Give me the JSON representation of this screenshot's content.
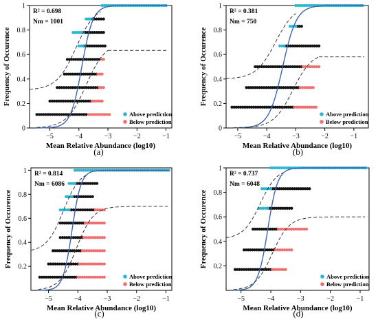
{
  "colors": {
    "above": "#2ab5d3",
    "below": "#ee6e6e",
    "neutral": "#111111",
    "model_line": "#3a64ae",
    "ci_line": "#333333"
  },
  "chart_data": [
    {
      "type": "scatter",
      "panel_label": "(a)",
      "stats": [
        "R² = 0.698",
        "Nm = 1001"
      ],
      "xlabel": "Mean Relative Abundance (log10)",
      "ylabel": "Frequency of Occurence",
      "xlim": [
        -5.7,
        -0.8
      ],
      "ylim": [
        0,
        1
      ],
      "x_ticks": [
        -5,
        -4,
        -3,
        -2,
        -1
      ],
      "y_ticks": [
        0,
        0.2,
        0.4,
        0.6,
        0.8,
        1
      ],
      "grid": false,
      "legend_position": "bottom-right",
      "series": [
        {
          "name": "Above prediction",
          "color_key": "above"
        },
        {
          "name": "Below prediction",
          "color_key": "below"
        }
      ],
      "model": {
        "midpoint": -3.9,
        "slope": 5.2
      },
      "lower_ci": {
        "plateau": 0.7,
        "midpoint": -3.75,
        "slope": 3.0,
        "end_x": -3.0
      },
      "upper_ci": {
        "base": 0.31,
        "midpoint": -4.1,
        "slope": 3.0,
        "end_x": -3.25
      },
      "levels": [
        {
          "y": 0.11,
          "black": [
            -5.45,
            -3.75
          ],
          "red": [
            -3.65,
            -2.95
          ]
        },
        {
          "y": 0.22,
          "black": [
            -5.0,
            -3.6
          ],
          "red": [
            -3.55,
            -3.2
          ]
        },
        {
          "y": 0.33,
          "black": [
            -4.75,
            -3.35
          ],
          "red": [
            -3.3,
            -3.15
          ]
        },
        {
          "y": 0.44,
          "black": [
            -4.5,
            -3.4
          ],
          "red": [
            -3.35,
            -3.2
          ]
        },
        {
          "y": 0.56,
          "black": [
            -4.4,
            -3.3
          ],
          "red": [
            -3.2,
            -3.15
          ]
        },
        {
          "y": 0.67,
          "cyan": [
            -4.0,
            -3.85
          ],
          "black": [
            -3.85,
            -3.1
          ]
        },
        {
          "y": 0.78,
          "cyan": [
            -4.2,
            -3.85
          ],
          "black": [
            -3.85,
            -3.15
          ]
        },
        {
          "y": 0.89,
          "cyan": [
            -3.75,
            -3.55
          ],
          "black": [
            -3.55,
            -3.15
          ]
        },
        {
          "y": 1.0,
          "cyan": [
            -3.2,
            -1.0
          ]
        }
      ]
    },
    {
      "type": "scatter",
      "panel_label": "(b)",
      "stats": [
        "R² = 0.381",
        "Nm = 750"
      ],
      "xlabel": "Mean Relative Abundance (log10)",
      "ylabel": "Frequency of Occurence",
      "xlim": [
        -5.4,
        -0.5
      ],
      "ylim": [
        0,
        1
      ],
      "x_ticks": [
        -5,
        -4,
        -3,
        -2,
        -1
      ],
      "y_ticks": [
        0,
        0.2,
        0.4,
        0.6,
        0.8,
        1
      ],
      "grid": false,
      "legend_position": "bottom-right",
      "series": [
        {
          "name": "Above prediction",
          "color_key": "above"
        },
        {
          "name": "Below prediction",
          "color_key": "below"
        }
      ],
      "model": {
        "midpoint": -3.45,
        "slope": 4.2
      },
      "lower_ci": {
        "plateau": 0.62,
        "midpoint": -3.1,
        "slope": 3.0,
        "end_x": -2.2
      },
      "upper_ci": {
        "base": 0.4,
        "midpoint": -3.7,
        "slope": 3.0,
        "end_x": -3.0
      },
      "levels": [
        {
          "y": 0.17,
          "black": [
            -5.2,
            -3.1
          ],
          "red": [
            -3.05,
            -2.3
          ]
        },
        {
          "y": 0.33,
          "black": [
            -4.7,
            -2.9
          ],
          "red": [
            -2.85,
            -2.4
          ]
        },
        {
          "y": 0.5,
          "black": [
            -4.4,
            -2.8
          ],
          "red": [
            -2.75,
            -2.2
          ]
        },
        {
          "y": 0.67,
          "cyan": [
            -3.55,
            -3.4
          ],
          "black": [
            -3.4,
            -2.2
          ]
        },
        {
          "y": 0.83,
          "cyan": [
            -3.2,
            -3.0
          ],
          "black": [
            -3.0,
            -2.8
          ]
        },
        {
          "y": 1.0,
          "cyan": [
            -3.0,
            -0.7
          ]
        }
      ]
    },
    {
      "type": "scatter",
      "panel_label": "(c)",
      "stats": [
        "R² = 0.814",
        "Nm = 6086"
      ],
      "xlabel": "Mean Relative Abundance (log10)",
      "ylabel": "Frequency of Occurence",
      "xlim": [
        -5.6,
        -0.8
      ],
      "ylim": [
        0,
        1.02
      ],
      "x_ticks": [
        -5,
        -4,
        -3,
        -2,
        -1
      ],
      "y_ticks": [
        0.2,
        0.4,
        0.6,
        0.8,
        1
      ],
      "grid": false,
      "legend_position": "bottom-right",
      "series": [
        {
          "name": "Above prediction",
          "color_key": "above"
        },
        {
          "name": "Below prediction",
          "color_key": "below"
        }
      ],
      "model": {
        "midpoint": -4.2,
        "slope": 6.5
      },
      "lower_ci": {
        "plateau": 0.7,
        "midpoint": -4.05,
        "slope": 3.5,
        "end_x": -1.0
      },
      "upper_ci": {
        "base": 0.32,
        "midpoint": -4.5,
        "slope": 3.5,
        "end_x": -3.7
      },
      "levels": [
        {
          "y": 0.11,
          "black": [
            -5.3,
            -4.05
          ],
          "red": [
            -4.0,
            -3.1
          ]
        },
        {
          "y": 0.22,
          "black": [
            -5.0,
            -4.0
          ],
          "red": [
            -3.95,
            -3.1
          ]
        },
        {
          "y": 0.33,
          "black": [
            -4.85,
            -3.9
          ],
          "red": [
            -3.85,
            -3.1
          ]
        },
        {
          "y": 0.44,
          "black": [
            -4.6,
            -3.85
          ],
          "red": [
            -3.8,
            -3.1
          ]
        },
        {
          "y": 0.56,
          "black": [
            -4.6,
            -3.8
          ],
          "red": [
            -3.75,
            -3.1
          ]
        },
        {
          "y": 0.67,
          "cyan": [
            -4.6,
            -4.3
          ],
          "black": [
            -4.3,
            -3.45
          ],
          "red": [
            -3.4,
            -3.1
          ]
        },
        {
          "y": 0.78,
          "cyan": [
            -4.4,
            -4.2
          ],
          "black": [
            -4.2,
            -3.5
          ]
        },
        {
          "y": 0.89,
          "cyan": [
            -4.3,
            -4.1
          ],
          "black": [
            -4.1,
            -3.35
          ]
        },
        {
          "y": 1.0,
          "cyan": [
            -4.1,
            -0.9
          ]
        }
      ]
    },
    {
      "type": "scatter",
      "panel_label": "(d)",
      "stats": [
        "R² = 0.737",
        "Nm = 6048"
      ],
      "xlabel": "Mean Relative Abundance (log10)",
      "ylabel": "Frequency of Occurence",
      "xlim": [
        -5.5,
        -0.7
      ],
      "ylim": [
        0,
        1
      ],
      "x_ticks": [
        -5,
        -4,
        -3,
        -2,
        -1
      ],
      "y_ticks": [
        0.2,
        0.4,
        0.6,
        0.8,
        1
      ],
      "grid": false,
      "legend_position": "bottom-right",
      "series": [
        {
          "name": "Above prediction",
          "color_key": "above"
        },
        {
          "name": "Below prediction",
          "color_key": "below"
        }
      ],
      "model": {
        "midpoint": -4.1,
        "slope": 6.0
      },
      "lower_ci": {
        "plateau": 0.6,
        "midpoint": -3.95,
        "slope": 3.5,
        "end_x": -0.9
      },
      "upper_ci": {
        "base": 0.42,
        "midpoint": -4.35,
        "slope": 3.5,
        "end_x": -3.6
      },
      "levels": [
        {
          "y": 0.17,
          "black": [
            -5.2,
            -4.0
          ],
          "red": [
            -3.95,
            -3.5
          ]
        },
        {
          "y": 0.33,
          "black": [
            -4.9,
            -3.9
          ],
          "red": [
            -3.85,
            -3.3
          ]
        },
        {
          "y": 0.5,
          "black": [
            -4.6,
            -3.8
          ],
          "red": [
            -3.75,
            -2.8
          ]
        },
        {
          "y": 0.67,
          "cyan": [
            -4.4,
            -4.1
          ],
          "black": [
            -4.1,
            -3.3
          ]
        },
        {
          "y": 0.83,
          "cyan": [
            -4.3,
            -4.0
          ],
          "black": [
            -4.0,
            -2.7
          ]
        },
        {
          "y": 1.0,
          "cyan": [
            -4.0,
            -0.8
          ]
        }
      ]
    }
  ]
}
